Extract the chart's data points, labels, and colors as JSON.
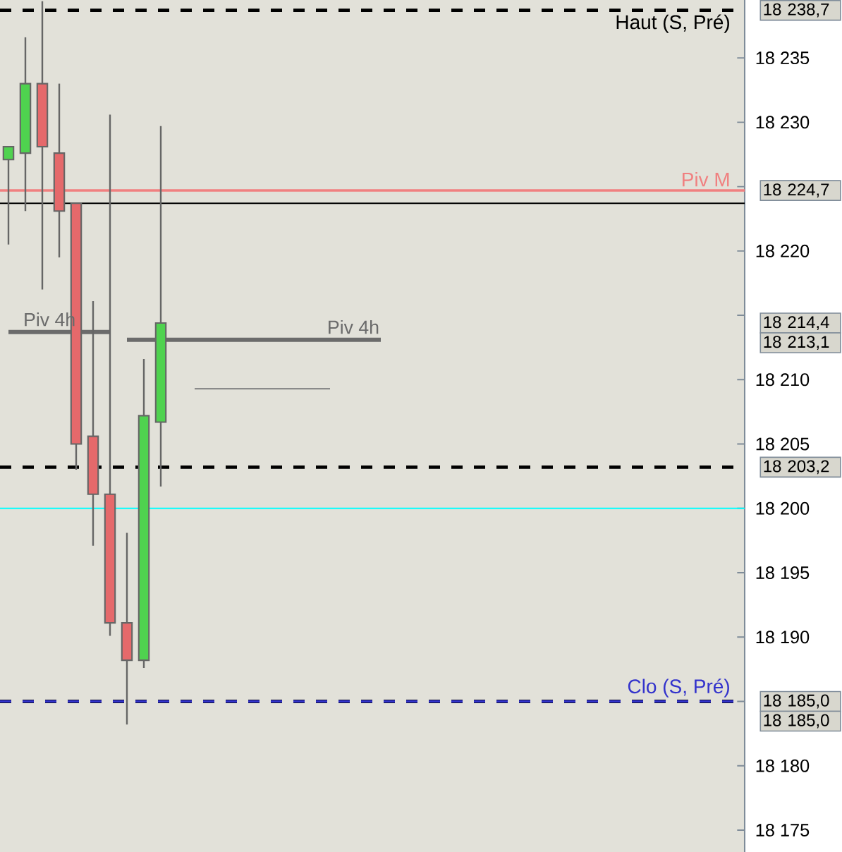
{
  "chart_data": {
    "type": "candlestick",
    "categories": [
      null,
      null,
      null,
      null,
      null,
      null,
      null,
      null,
      null,
      null,
      null,
      null,
      null,
      null,
      null,
      null,
      null,
      null,
      null,
      null,
      null,
      null,
      null,
      null,
      null,
      null,
      null,
      null,
      null,
      null,
      null,
      null,
      null,
      null,
      null,
      null,
      null,
      null,
      null,
      null,
      null,
      null,
      null,
      null
    ],
    "ylim": [
      18173.3,
      18239.5
    ],
    "tick_labels": "y",
    "yticks": [
      {
        "value": 18175,
        "label": "18 175"
      },
      {
        "value": 18180,
        "label": "18 180"
      },
      {
        "value": 18185,
        "label": null
      },
      {
        "value": 18190,
        "label": "18 190"
      },
      {
        "value": 18195,
        "label": "18 195"
      },
      {
        "value": 18200,
        "label": "18 200"
      },
      {
        "value": 18205,
        "label": "18 205"
      },
      {
        "value": 18210,
        "label": "18 210"
      },
      {
        "value": 18215,
        "label": null
      },
      {
        "value": 18220,
        "label": "18 220"
      },
      {
        "value": 18225,
        "label": null
      },
      {
        "value": 18230,
        "label": "18 230"
      },
      {
        "value": 18235,
        "label": "18 235"
      }
    ],
    "ohlc": [
      [
        18227.1,
        18228.1,
        18220.5,
        18228.1
      ],
      [
        18227.6,
        18236.6,
        18223.1,
        18233.0
      ],
      [
        18233.0,
        18239.4,
        18217.0,
        18228.1
      ],
      [
        18227.6,
        18233.0,
        18219.5,
        18223.1
      ],
      [
        18223.7,
        18223.7,
        18203.0,
        18205.0
      ],
      [
        18205.6,
        18216.1,
        18197.1,
        18201.1
      ],
      [
        18201.1,
        18230.6,
        18190.1,
        18191.1
      ],
      [
        18191.1,
        18198.1,
        18183.2,
        18188.2
      ],
      [
        18188.2,
        18211.6,
        18187.6,
        18207.2
      ],
      [
        18206.7,
        18229.7,
        18201.7,
        18214.4
      ],
      null,
      null,
      null,
      null,
      null,
      null,
      null,
      null,
      null,
      null,
      null,
      null,
      null,
      null,
      null,
      null,
      null,
      null,
      null,
      null,
      null,
      null,
      null,
      null,
      null,
      null,
      null,
      null,
      null,
      null,
      null,
      null,
      null,
      null
    ],
    "colors": [
      "#4fd24f",
      "#4fd24f",
      "#e5696b",
      "#e5696b",
      "#e5696b",
      "#e5696b",
      "#e5696b",
      "#e5696b",
      "#4fd24f",
      "#4fd24f",
      null,
      null,
      null,
      null,
      null,
      null,
      null,
      null,
      null,
      null,
      null,
      null,
      null,
      null,
      null,
      null,
      null,
      null,
      null,
      null,
      null,
      null,
      null,
      null,
      null,
      null,
      null,
      null,
      null,
      null,
      null,
      null,
      null,
      null
    ],
    "ref_lines": [
      {
        "axis": "y",
        "value": 18238.7,
        "label": "Haut (S, Pré)",
        "color": "#000000",
        "line_style": "dashed"
      },
      {
        "axis": "y",
        "value": 18224.7,
        "label": "Piv M",
        "color": "#f08080",
        "line_style": "solid"
      },
      {
        "axis": "y",
        "value": 18223.7,
        "color": "#000000",
        "line_style": "solid"
      },
      {
        "axis": "y",
        "value": 18203.2,
        "color": "#000000",
        "line_style": "dashed"
      },
      {
        "axis": "y",
        "value": 18200,
        "color": "#00ffff",
        "line_style": "solid"
      },
      {
        "axis": "y",
        "value": 18185.0,
        "color": "#000000",
        "line_style": "dashed"
      },
      {
        "axis": "y",
        "value": 18185.0,
        "label": "Clo (S, Pré)",
        "color": "#3333cc",
        "line_style": "dashed"
      }
    ],
    "series": [
      {
        "type": "line",
        "name": "Piv 4h",
        "color": "#6b6b6b",
        "values": [
          18213.7,
          18213.7,
          18213.7,
          18213.7,
          18213.7,
          18213.7,
          18213.7,
          null,
          null,
          null,
          null,
          null,
          null,
          null,
          null,
          null,
          null,
          null,
          null,
          null,
          null,
          null,
          null,
          null,
          null,
          null,
          null,
          null,
          null,
          null,
          null,
          null,
          null,
          null,
          null,
          null,
          null,
          null,
          null,
          null,
          null,
          null,
          null,
          null
        ]
      },
      {
        "type": "line",
        "name": "Piv 4h",
        "color": "#6b6b6b",
        "values": [
          null,
          null,
          null,
          null,
          null,
          null,
          null,
          18213.1,
          18213.1,
          18213.1,
          18213.1,
          18213.1,
          18213.1,
          18213.1,
          18213.1,
          18213.1,
          18213.1,
          18213.1,
          18213.1,
          18213.1,
          18213.1,
          18213.1,
          18213.1,
          null,
          null,
          null,
          null,
          null,
          null,
          null,
          null,
          null,
          null,
          null,
          null,
          null,
          null,
          null,
          null,
          null,
          null,
          null,
          null,
          null
        ]
      },
      {
        "type": "line",
        "color": "#8a8a8a",
        "values": [
          null,
          null,
          null,
          null,
          null,
          null,
          null,
          null,
          null,
          null,
          null,
          18209.3,
          18209.3,
          18209.3,
          18209.3,
          18209.3,
          18209.3,
          18209.3,
          18209.3,
          18209.3,
          null,
          null,
          null,
          null,
          null,
          null,
          null,
          null,
          null,
          null,
          null,
          null,
          null,
          null,
          null,
          null,
          null,
          null,
          null,
          null,
          null,
          null,
          null,
          null
        ]
      }
    ],
    "annotations": [
      "18 238,7",
      "18 224,7",
      "18 214,4",
      "18 213,1",
      "18 203,2",
      "18 185,0",
      "18 185,0"
    ]
  }
}
